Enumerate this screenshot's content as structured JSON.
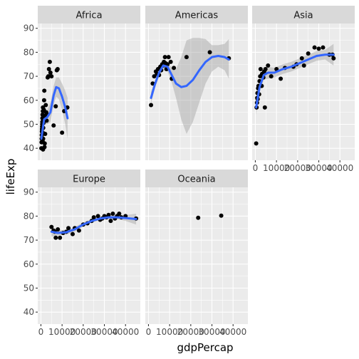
{
  "chart_data": {
    "type": "scatter",
    "facet_by": "continent",
    "xlabel": "gdpPercap",
    "ylabel": "lifeExp",
    "xlim": [
      -1500,
      47000
    ],
    "ylim": [
      35,
      92
    ],
    "x_ticks": [
      0,
      10000,
      20000,
      30000,
      40000
    ],
    "x_tick_labels": [
      "0",
      "10000",
      "20000",
      "30000",
      "40000"
    ],
    "y_ticks": [
      40,
      50,
      60,
      70,
      80,
      90
    ],
    "y_tick_labels": [
      "40",
      "50",
      "60",
      "70",
      "80",
      "90"
    ],
    "point_color": "#000000",
    "smooth_color": "#3366ff",
    "ribbon_color": "#999999",
    "panel_color": "#ebebeb",
    "strip_color": "#d9d9d9",
    "grid": true,
    "facets": [
      {
        "name": "Africa",
        "points": [
          [
            200,
            40
          ],
          [
            300,
            42.5
          ],
          [
            350,
            44
          ],
          [
            400,
            45.5
          ],
          [
            450,
            47
          ],
          [
            500,
            48
          ],
          [
            550,
            49
          ],
          [
            600,
            50
          ],
          [
            650,
            51
          ],
          [
            700,
            52.5
          ],
          [
            750,
            54
          ],
          [
            800,
            43
          ],
          [
            850,
            46.5
          ],
          [
            900,
            55.5
          ],
          [
            950,
            57
          ],
          [
            1000,
            39.5
          ],
          [
            1050,
            44
          ],
          [
            1100,
            48.5
          ],
          [
            1200,
            50.5
          ],
          [
            1300,
            52
          ],
          [
            1400,
            56
          ],
          [
            1500,
            60
          ],
          [
            1600,
            64
          ],
          [
            1700,
            40.5
          ],
          [
            1800,
            42
          ],
          [
            2000,
            46
          ],
          [
            2100,
            53.5
          ],
          [
            2300,
            58
          ],
          [
            2500,
            55
          ],
          [
            2700,
            51.5
          ],
          [
            3000,
            54
          ],
          [
            3200,
            69.5
          ],
          [
            3500,
            70
          ],
          [
            3800,
            73
          ],
          [
            4200,
            76
          ],
          [
            4500,
            71.5
          ],
          [
            5000,
            70
          ],
          [
            6000,
            49.5
          ],
          [
            7000,
            57.5
          ],
          [
            7500,
            72.5
          ],
          [
            7900,
            73
          ],
          [
            10000,
            46.5
          ],
          [
            11000,
            55.5
          ],
          [
            12500,
            57
          ]
        ],
        "smooth": [
          [
            200,
            44
          ],
          [
            1500,
            52
          ],
          [
            3000,
            53
          ],
          [
            4500,
            55
          ],
          [
            6000,
            62
          ],
          [
            7200,
            65.5
          ],
          [
            8500,
            65
          ],
          [
            10000,
            61.5
          ],
          [
            11500,
            57
          ],
          [
            12600,
            52.5
          ]
        ],
        "ribbon": [
          [
            200,
            41,
            47
          ],
          [
            1500,
            50,
            54
          ],
          [
            3000,
            50,
            56
          ],
          [
            4500,
            51,
            59
          ],
          [
            6000,
            58,
            66
          ],
          [
            7200,
            61.5,
            69.5
          ],
          [
            8500,
            60.5,
            69.5
          ],
          [
            10000,
            56,
            67
          ],
          [
            11500,
            50,
            64
          ],
          [
            12600,
            44,
            61
          ]
        ]
      },
      {
        "name": "Americas",
        "points": [
          [
            1200,
            58
          ],
          [
            2000,
            67
          ],
          [
            2700,
            70
          ],
          [
            3500,
            72
          ],
          [
            4000,
            71
          ],
          [
            4500,
            73
          ],
          [
            5000,
            70.5
          ],
          [
            5600,
            74
          ],
          [
            6000,
            72.5
          ],
          [
            6500,
            75
          ],
          [
            7000,
            74.5
          ],
          [
            7300,
            76
          ],
          [
            7800,
            78
          ],
          [
            8000,
            75.5
          ],
          [
            8500,
            73
          ],
          [
            9000,
            75
          ],
          [
            9500,
            78
          ],
          [
            10500,
            76
          ],
          [
            11000,
            69
          ],
          [
            12000,
            73.5
          ],
          [
            18000,
            78
          ],
          [
            29000,
            80
          ],
          [
            38000,
            77.5
          ]
        ],
        "smooth": [
          [
            1200,
            61
          ],
          [
            3000,
            66.5
          ],
          [
            5000,
            71.5
          ],
          [
            7000,
            74.5
          ],
          [
            9000,
            74
          ],
          [
            11000,
            70.5
          ],
          [
            13000,
            67
          ],
          [
            15500,
            65.5
          ],
          [
            18000,
            66
          ],
          [
            21000,
            68.5
          ],
          [
            24000,
            72.5
          ],
          [
            27000,
            76
          ],
          [
            30000,
            78
          ],
          [
            33000,
            78.5
          ],
          [
            36000,
            78
          ],
          [
            38000,
            77
          ]
        ],
        "ribbon": [
          [
            1200,
            58.5,
            63.5
          ],
          [
            3000,
            65,
            68
          ],
          [
            5000,
            70,
            73
          ],
          [
            7000,
            72.5,
            76.5
          ],
          [
            9000,
            72,
            76
          ],
          [
            11000,
            67.5,
            73.5
          ],
          [
            13000,
            61,
            73
          ],
          [
            15500,
            52,
            78
          ],
          [
            18000,
            46,
            85
          ],
          [
            21000,
            51,
            86
          ],
          [
            24000,
            59,
            86
          ],
          [
            27000,
            67,
            85.5
          ],
          [
            30000,
            72,
            83
          ],
          [
            33000,
            74,
            83
          ],
          [
            36000,
            72.5,
            83.5
          ],
          [
            38000,
            69,
            85.5
          ]
        ]
      },
      {
        "name": "Asia",
        "points": [
          [
            400,
            42
          ],
          [
            600,
            57
          ],
          [
            800,
            59
          ],
          [
            900,
            61
          ],
          [
            1000,
            63
          ],
          [
            1100,
            60.5
          ],
          [
            1300,
            65
          ],
          [
            1500,
            66
          ],
          [
            1800,
            62.5
          ],
          [
            2000,
            68
          ],
          [
            2300,
            70
          ],
          [
            2500,
            73
          ],
          [
            3000,
            66
          ],
          [
            3200,
            71
          ],
          [
            3800,
            69.5
          ],
          [
            4200,
            72
          ],
          [
            4500,
            57
          ],
          [
            4800,
            73
          ],
          [
            6000,
            74.5
          ],
          [
            7500,
            70
          ],
          [
            10000,
            73
          ],
          [
            12000,
            69
          ],
          [
            14000,
            73.5
          ],
          [
            18000,
            74
          ],
          [
            19500,
            75
          ],
          [
            22000,
            77.5
          ],
          [
            23000,
            74.5
          ],
          [
            25000,
            79.5
          ],
          [
            28000,
            82
          ],
          [
            30000,
            81.5
          ],
          [
            32000,
            82
          ],
          [
            35000,
            79
          ],
          [
            36500,
            79
          ],
          [
            37000,
            77.5
          ]
        ],
        "smooth": [
          [
            400,
            57
          ],
          [
            2000,
            65.5
          ],
          [
            4000,
            70.5
          ],
          [
            6000,
            71.5
          ],
          [
            9000,
            71.5
          ],
          [
            13000,
            73
          ],
          [
            17000,
            74
          ],
          [
            21000,
            75.5
          ],
          [
            25000,
            77
          ],
          [
            29000,
            78.5
          ],
          [
            33000,
            79
          ],
          [
            37000,
            79
          ]
        ],
        "ribbon": [
          [
            400,
            54,
            60
          ],
          [
            2000,
            63.5,
            67.5
          ],
          [
            4000,
            68.5,
            72.5
          ],
          [
            6000,
            69,
            74
          ],
          [
            9000,
            69.5,
            73.5
          ],
          [
            13000,
            71,
            75
          ],
          [
            17000,
            72,
            76
          ],
          [
            21000,
            73.5,
            77.5
          ],
          [
            25000,
            75,
            79
          ],
          [
            29000,
            76.5,
            80.5
          ],
          [
            33000,
            77,
            81
          ],
          [
            37000,
            74.5,
            83.5
          ]
        ]
      },
      {
        "name": "Europe",
        "points": [
          [
            5000,
            75.5
          ],
          [
            6000,
            74
          ],
          [
            6500,
            73.5
          ],
          [
            7000,
            71
          ],
          [
            8000,
            74.5
          ],
          [
            9000,
            71
          ],
          [
            10500,
            73
          ],
          [
            12000,
            73.5
          ],
          [
            13000,
            75
          ],
          [
            15000,
            72.5
          ],
          [
            16000,
            75
          ],
          [
            18000,
            74
          ],
          [
            20000,
            76.5
          ],
          [
            22000,
            77
          ],
          [
            24000,
            78
          ],
          [
            25000,
            79.5
          ],
          [
            27000,
            80
          ],
          [
            28000,
            78.5
          ],
          [
            29000,
            79
          ],
          [
            30000,
            80
          ],
          [
            31000,
            79.5
          ],
          [
            32000,
            80.5
          ],
          [
            33000,
            78
          ],
          [
            34000,
            81
          ],
          [
            35000,
            79
          ],
          [
            36000,
            80
          ],
          [
            37000,
            81
          ],
          [
            38000,
            79.5
          ],
          [
            40000,
            80
          ],
          [
            45000,
            79
          ]
        ],
        "smooth": [
          [
            5000,
            73.5
          ],
          [
            8000,
            73
          ],
          [
            12000,
            73.3
          ],
          [
            16000,
            74.5
          ],
          [
            20000,
            76.5
          ],
          [
            24000,
            78
          ],
          [
            28000,
            79
          ],
          [
            32000,
            79.5
          ],
          [
            36000,
            79.5
          ],
          [
            40000,
            79.2
          ],
          [
            45000,
            78.8
          ]
        ],
        "ribbon": [
          [
            5000,
            71.5,
            75.5
          ],
          [
            8000,
            72,
            74
          ],
          [
            12000,
            72.3,
            74.3
          ],
          [
            16000,
            73.5,
            75.5
          ],
          [
            20000,
            75.7,
            77.3
          ],
          [
            24000,
            77.3,
            78.7
          ],
          [
            28000,
            78.3,
            79.7
          ],
          [
            32000,
            78.8,
            80.2
          ],
          [
            36000,
            78.8,
            80.2
          ],
          [
            40000,
            78,
            80.4
          ],
          [
            45000,
            76.5,
            81
          ]
        ]
      },
      {
        "name": "Oceania",
        "points": [
          [
            23500,
            79.3
          ],
          [
            34400,
            80.2
          ]
        ],
        "smooth": [],
        "ribbon": []
      }
    ]
  }
}
